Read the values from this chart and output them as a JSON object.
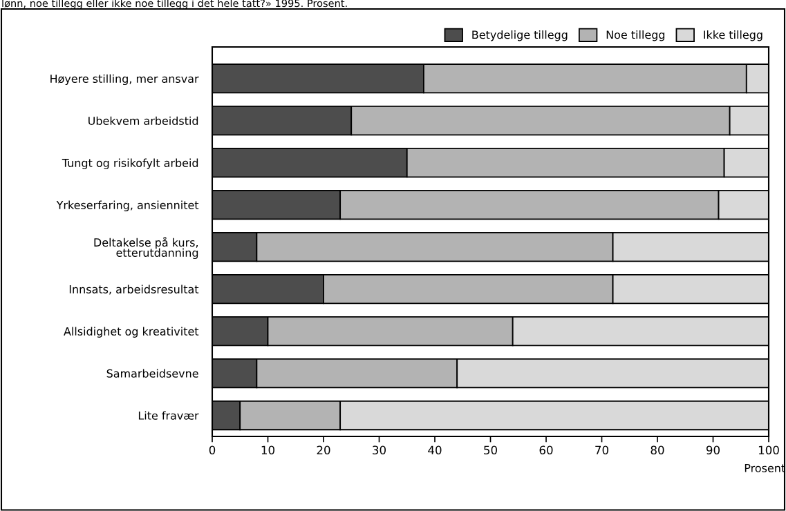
{
  "chart_data": {
    "type": "bar",
    "orientation": "horizontal",
    "stacked": true,
    "title": "lønn, noe tillegg eller ikke noe tillegg i det hele tatt?» 1995. Prosent.",
    "xlabel": "Prosent",
    "categories": [
      "Høyere stilling, mer ansvar",
      "Ubekvem arbeidstid",
      "Tungt og risikofylt arbeid",
      "Yrkeserfaring, ansiennitet",
      "Deltakelse på kurs,\netterutdanning",
      "Innsats, arbeidsresultat",
      "Allsidighet og kreativitet",
      "Samarbeidsevne",
      "Lite fravær"
    ],
    "series": [
      {
        "name": "Betydelige tillegg",
        "color": "#4d4d4d",
        "values": [
          38,
          25,
          35,
          23,
          8,
          20,
          10,
          8,
          5
        ]
      },
      {
        "name": "Noe tillegg",
        "color": "#b3b3b3",
        "values": [
          58,
          68,
          57,
          68,
          64,
          52,
          44,
          36,
          18
        ]
      },
      {
        "name": "Ikke tillegg",
        "color": "#d9d9d9",
        "values": [
          4,
          7,
          8,
          9,
          28,
          28,
          46,
          56,
          77
        ]
      }
    ],
    "xlim": [
      0,
      100
    ],
    "xticks": [
      0,
      10,
      20,
      30,
      40,
      50,
      60,
      70,
      80,
      90,
      100
    ],
    "grid": false,
    "legend": "top right"
  }
}
